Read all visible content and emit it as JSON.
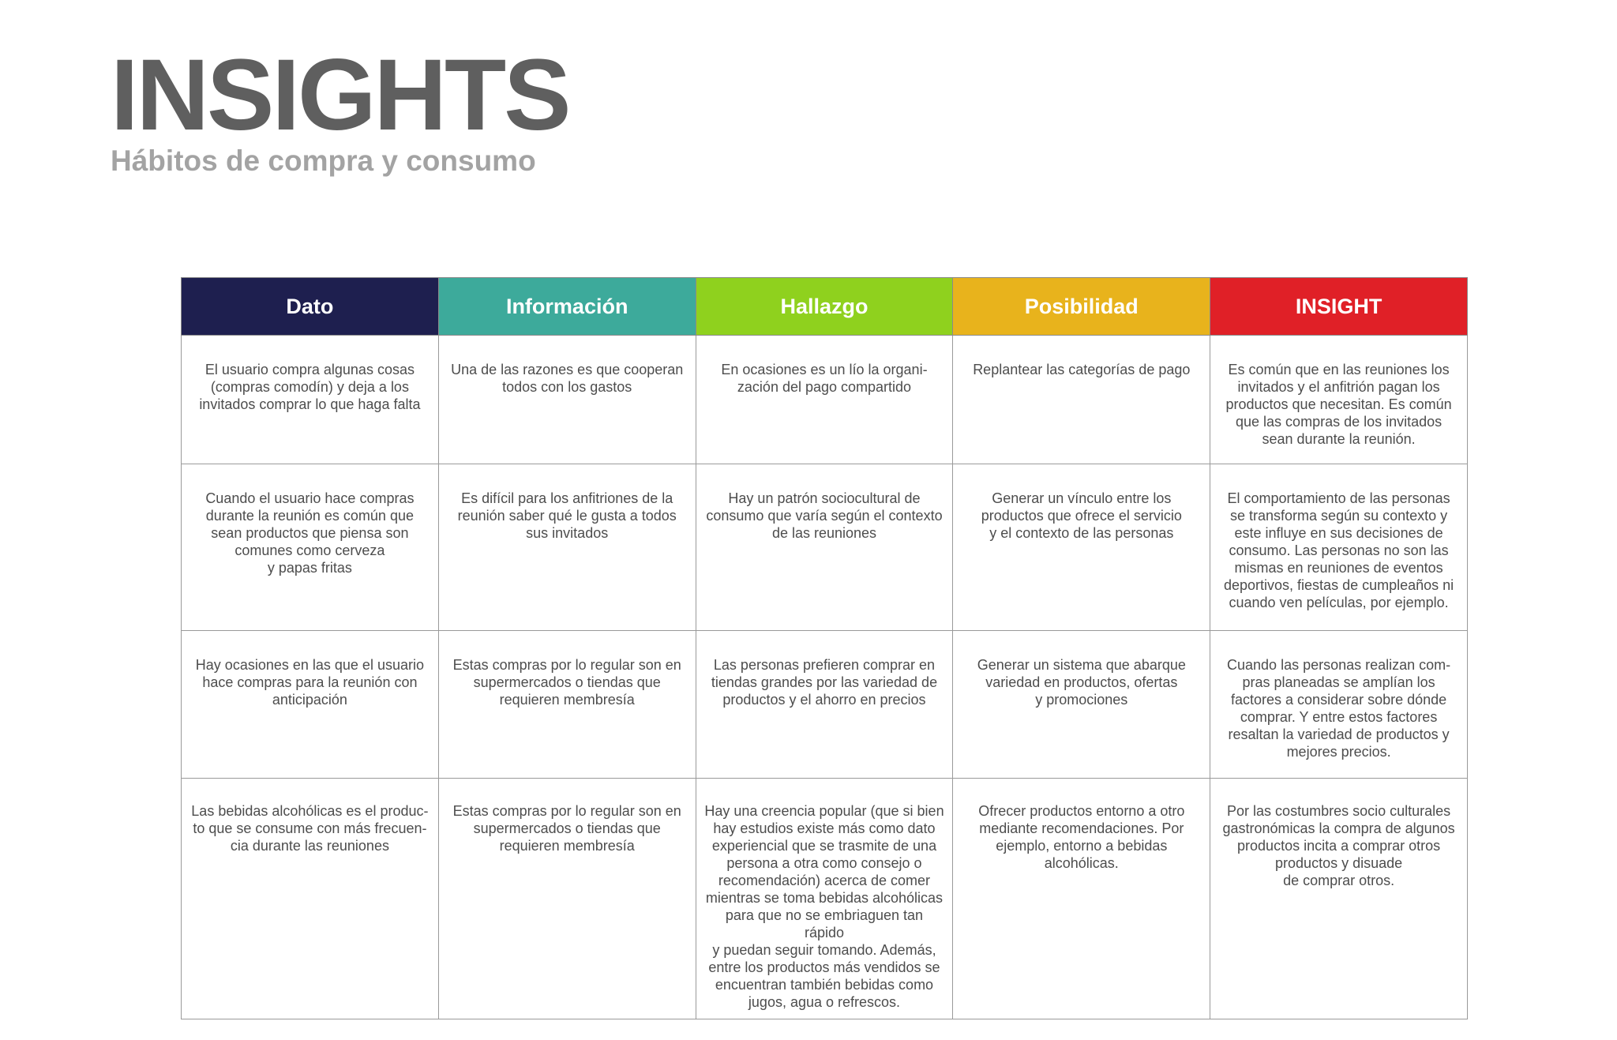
{
  "header": {
    "title": "INSIGHTS",
    "subtitle": "Hábitos de compra y consumo"
  },
  "table": {
    "columns": [
      {
        "label": "Dato",
        "color": "#1e1f4f"
      },
      {
        "label": "Información",
        "color": "#3daa9b"
      },
      {
        "label": "Hallazgo",
        "color": "#8fd11e"
      },
      {
        "label": "Posibilidad",
        "color": "#e8b31c"
      },
      {
        "label": "INSIGHT",
        "color": "#e02027"
      }
    ],
    "rows": [
      [
        "El usuario compra algunas cosas\n(compras comodín) y deja a los\ninvitados comprar lo que haga falta",
        "Una de las razones es que cooperan\ntodos con los gastos",
        "En ocasiones es un lío la organi-\nzación del pago compartido",
        "Replantear las categorías de pago",
        "Es común que en las reuniones los\ninvitados y el anfitrión pagan los\nproductos que necesitan. Es común\nque las compras de los invitados\nsean durante la reunión."
      ],
      [
        "Cuando el usuario hace compras\ndurante la reunión es común que\nsean productos que piensa son\ncomunes como cerveza\ny papas fritas",
        "Es difícil para los anfitriones de la\nreunión saber qué le gusta a todos\nsus invitados",
        "Hay un patrón sociocultural de\nconsumo que varía según el contexto\nde las reuniones",
        "Generar un vínculo entre los\nproductos que ofrece el servicio\ny el contexto de las personas",
        "El comportamiento de las personas\nse transforma según su contexto y\neste influye en sus decisiones de\nconsumo. Las personas no son las\nmismas en reuniones de eventos\ndeportivos, fiestas de cumpleaños ni\ncuando ven películas, por ejemplo."
      ],
      [
        "Hay ocasiones en las que el usuario\nhace compras para la reunión con\nanticipación",
        "Estas compras por lo regular son en\nsupermercados o tiendas que\nrequieren membresía",
        "Las personas prefieren comprar en\ntiendas grandes por las variedad de\nproductos y el ahorro en precios",
        "Generar un sistema que abarque\nvariedad en productos, ofertas\ny promociones",
        "Cuando las personas realizan com-\npras planeadas se amplían los\nfactores a considerar sobre dónde\ncomprar. Y entre estos factores\nresaltan la variedad de productos y\nmejores precios."
      ],
      [
        "Las bebidas alcohólicas es el produc-\nto que se consume con más frecuen-\ncia durante las reuniones",
        "Estas compras por lo regular son en\nsupermercados o tiendas que\nrequieren membresía",
        "Hay una creencia popular (que si bien\nhay estudios existe más como dato\nexperiencial que se trasmite de una\npersona a otra como consejo o\nrecomendación) acerca de comer\nmientras se toma bebidas alcohólicas\npara que no se embriaguen tan rápido\ny puedan seguir tomando. Además,\nentre los productos más vendidos se\nencuentran también bebidas como\njugos, agua o refrescos.",
        "Ofrecer productos entorno a otro\nmediante recomendaciones. Por\nejemplo, entorno a bebidas\nalcohólicas.",
        "Por las costumbres socio culturales\ngastronómicas la compra de algunos\nproductos incita a comprar otros\nproductos y disuade\nde comprar otros."
      ]
    ]
  }
}
